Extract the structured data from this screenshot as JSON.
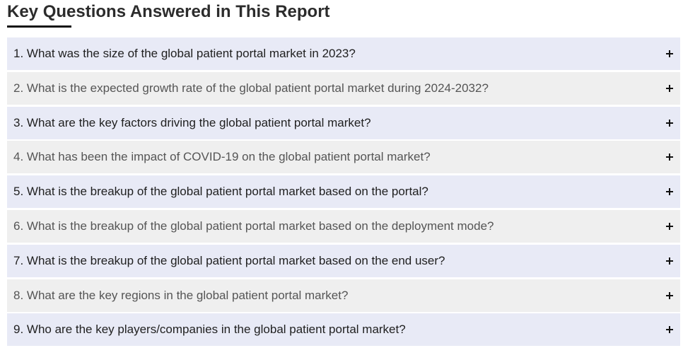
{
  "report": {
    "heading": "Key Questions Answered in This Report"
  },
  "faq": {
    "toggle_icon": "plus-icon",
    "colors": {
      "odd_row_background": "#e8eaf6",
      "even_row_background": "#efefef",
      "heading_underline": "#111111"
    },
    "items": [
      {
        "question": "1. What was the size of the global patient portal market in 2023?"
      },
      {
        "question": "2. What is the expected growth rate of the global patient portal market during 2024-2032?"
      },
      {
        "question": "3. What are the key factors driving the global patient portal market?"
      },
      {
        "question": "4. What has been the impact of COVID-19 on the global patient portal market?"
      },
      {
        "question": "5. What is the breakup of the global patient portal market based on the portal?"
      },
      {
        "question": "6. What is the breakup of the global patient portal market based on the deployment mode?"
      },
      {
        "question": "7. What is the breakup of the global patient portal market based on the end user?"
      },
      {
        "question": "8. What are the key regions in the global patient portal market?"
      },
      {
        "question": "9. Who are the key players/companies in the global patient portal market?"
      }
    ]
  }
}
